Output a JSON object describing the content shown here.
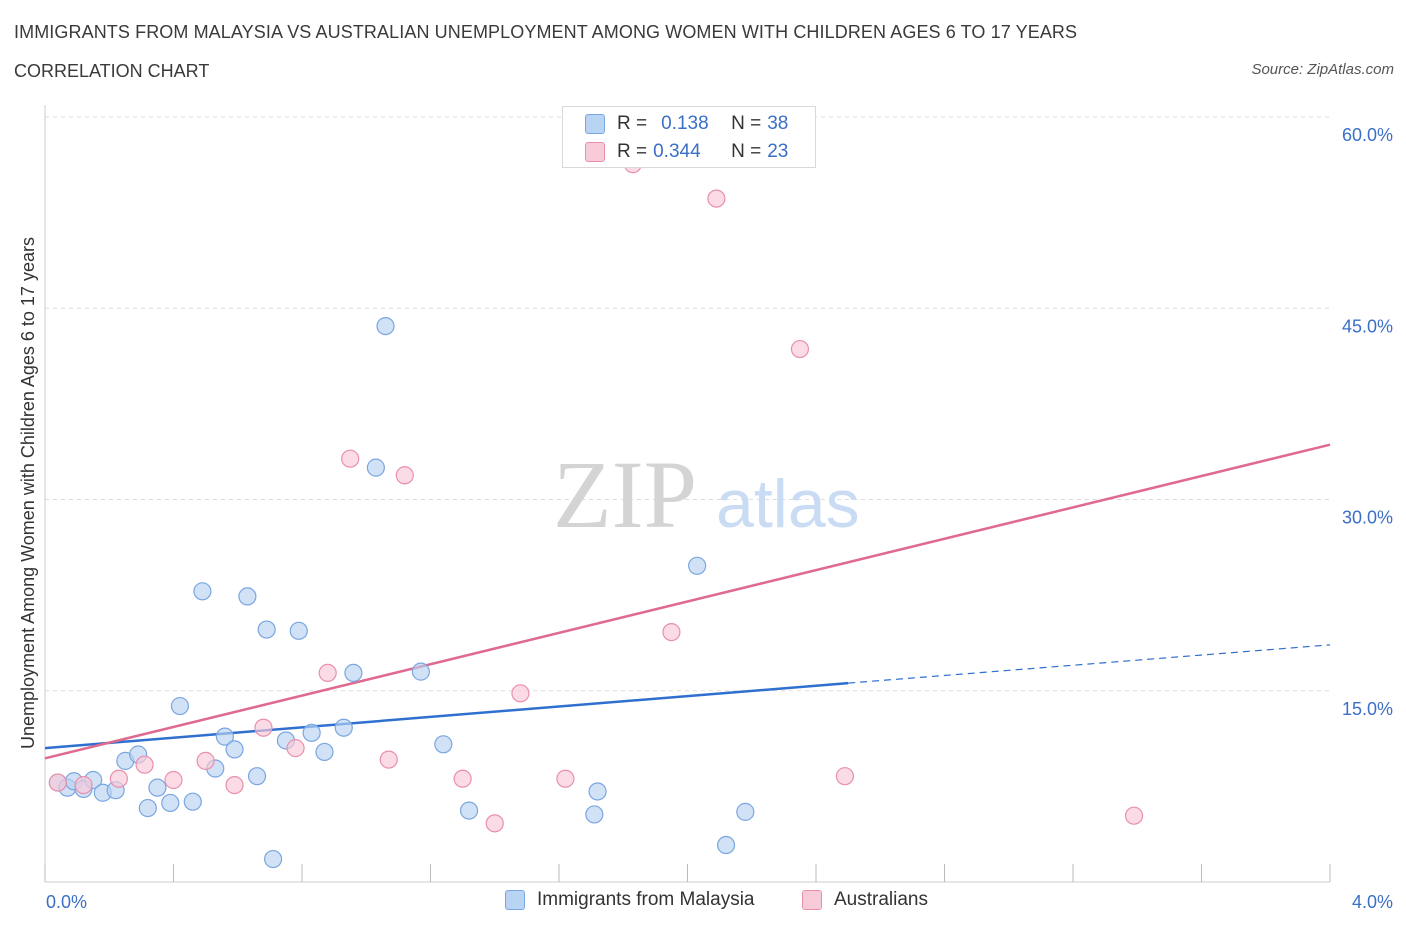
{
  "header": {
    "title": "IMMIGRANTS FROM MALAYSIA VS AUSTRALIAN UNEMPLOYMENT AMONG WOMEN WITH CHILDREN AGES 6 TO 17 YEARS",
    "subtitle": "CORRELATION CHART",
    "source": "Source: ZipAtlas.com"
  },
  "watermark": {
    "zip": "ZIP",
    "atlas": "atlas"
  },
  "stats": {
    "r_label": "R =",
    "n_label": "N =",
    "rows": [
      {
        "r": "0.138",
        "n": "38"
      },
      {
        "r": "0.344",
        "n": "23"
      }
    ]
  },
  "legend": {
    "items": [
      {
        "label": "Immigrants from Malaysia"
      },
      {
        "label": "Australians"
      }
    ]
  },
  "colors": {
    "blue_fill": "#b9d3f3",
    "blue_stroke": "#7aa6e0",
    "blue_line": "#2f6fcf",
    "pink_fill": "#f9cad8",
    "pink_stroke": "#e98fac",
    "pink_line": "#e0698f",
    "axis_text": "#3b6fc7",
    "grid": "#dddddd"
  },
  "chart_data": {
    "type": "scatter",
    "ylabel": "Unemployment Among Women with Children Ages 6 to 17 years",
    "xlim": [
      0,
      4.0
    ],
    "ylim": [
      0,
      60
    ],
    "x_tick_labels": [
      "0.0%",
      "4.0%"
    ],
    "y_ticks": [
      15,
      30,
      45,
      60
    ],
    "y_tick_labels": [
      "15.0%",
      "30.0%",
      "45.0%",
      "60.0%"
    ],
    "grid": true,
    "series": [
      {
        "name": "Immigrants from Malaysia",
        "color": "#b9d3f3",
        "points": [
          [
            0.04,
            7.8
          ],
          [
            0.07,
            7.4
          ],
          [
            0.09,
            7.9
          ],
          [
            0.12,
            7.3
          ],
          [
            0.15,
            8.0
          ],
          [
            0.18,
            7.0
          ],
          [
            0.22,
            7.2
          ],
          [
            0.25,
            9.5
          ],
          [
            0.29,
            10.0
          ],
          [
            0.32,
            5.8
          ],
          [
            0.35,
            7.4
          ],
          [
            0.39,
            6.2
          ],
          [
            0.42,
            13.8
          ],
          [
            0.46,
            6.3
          ],
          [
            0.49,
            22.8
          ],
          [
            0.53,
            8.9
          ],
          [
            0.56,
            11.4
          ],
          [
            0.59,
            10.4
          ],
          [
            0.63,
            22.4
          ],
          [
            0.66,
            8.3
          ],
          [
            0.69,
            19.8
          ],
          [
            0.71,
            1.8
          ],
          [
            0.75,
            11.1
          ],
          [
            0.79,
            19.7
          ],
          [
            0.83,
            11.7
          ],
          [
            0.87,
            10.2
          ],
          [
            0.93,
            12.1
          ],
          [
            0.96,
            16.4
          ],
          [
            1.03,
            32.5
          ],
          [
            1.06,
            43.6
          ],
          [
            1.17,
            16.5
          ],
          [
            1.24,
            10.8
          ],
          [
            1.32,
            5.6
          ],
          [
            1.71,
            5.3
          ],
          [
            1.72,
            7.1
          ],
          [
            2.03,
            24.8
          ],
          [
            2.12,
            2.9
          ],
          [
            2.18,
            5.5
          ]
        ]
      },
      {
        "name": "Australians",
        "color": "#f9cad8",
        "points": [
          [
            0.04,
            7.8
          ],
          [
            0.12,
            7.6
          ],
          [
            0.23,
            8.1
          ],
          [
            0.31,
            9.2
          ],
          [
            0.4,
            8.0
          ],
          [
            0.5,
            9.5
          ],
          [
            0.59,
            7.6
          ],
          [
            0.68,
            12.1
          ],
          [
            0.78,
            10.5
          ],
          [
            0.88,
            16.4
          ],
          [
            0.95,
            33.2
          ],
          [
            1.12,
            31.9
          ],
          [
            1.07,
            9.6
          ],
          [
            1.3,
            8.1
          ],
          [
            1.4,
            4.6
          ],
          [
            1.48,
            14.8
          ],
          [
            1.62,
            8.1
          ],
          [
            1.83,
            56.3
          ],
          [
            1.95,
            19.6
          ],
          [
            2.09,
            53.6
          ],
          [
            2.35,
            41.8
          ],
          [
            2.49,
            8.3
          ],
          [
            3.39,
            5.2
          ]
        ]
      }
    ],
    "trend_lines": [
      {
        "series": "Immigrants from Malaysia",
        "x_start": 0.0,
        "y_start": 10.5,
        "x_solid_end": 2.5,
        "y_solid_end": 15.6,
        "x_end": 4.0,
        "y_end": 18.6,
        "style": "solid then dashed"
      },
      {
        "series": "Australians",
        "x_start": 0.0,
        "y_start": 9.7,
        "x_end": 4.0,
        "y_end": 34.3,
        "style": "solid"
      }
    ]
  }
}
